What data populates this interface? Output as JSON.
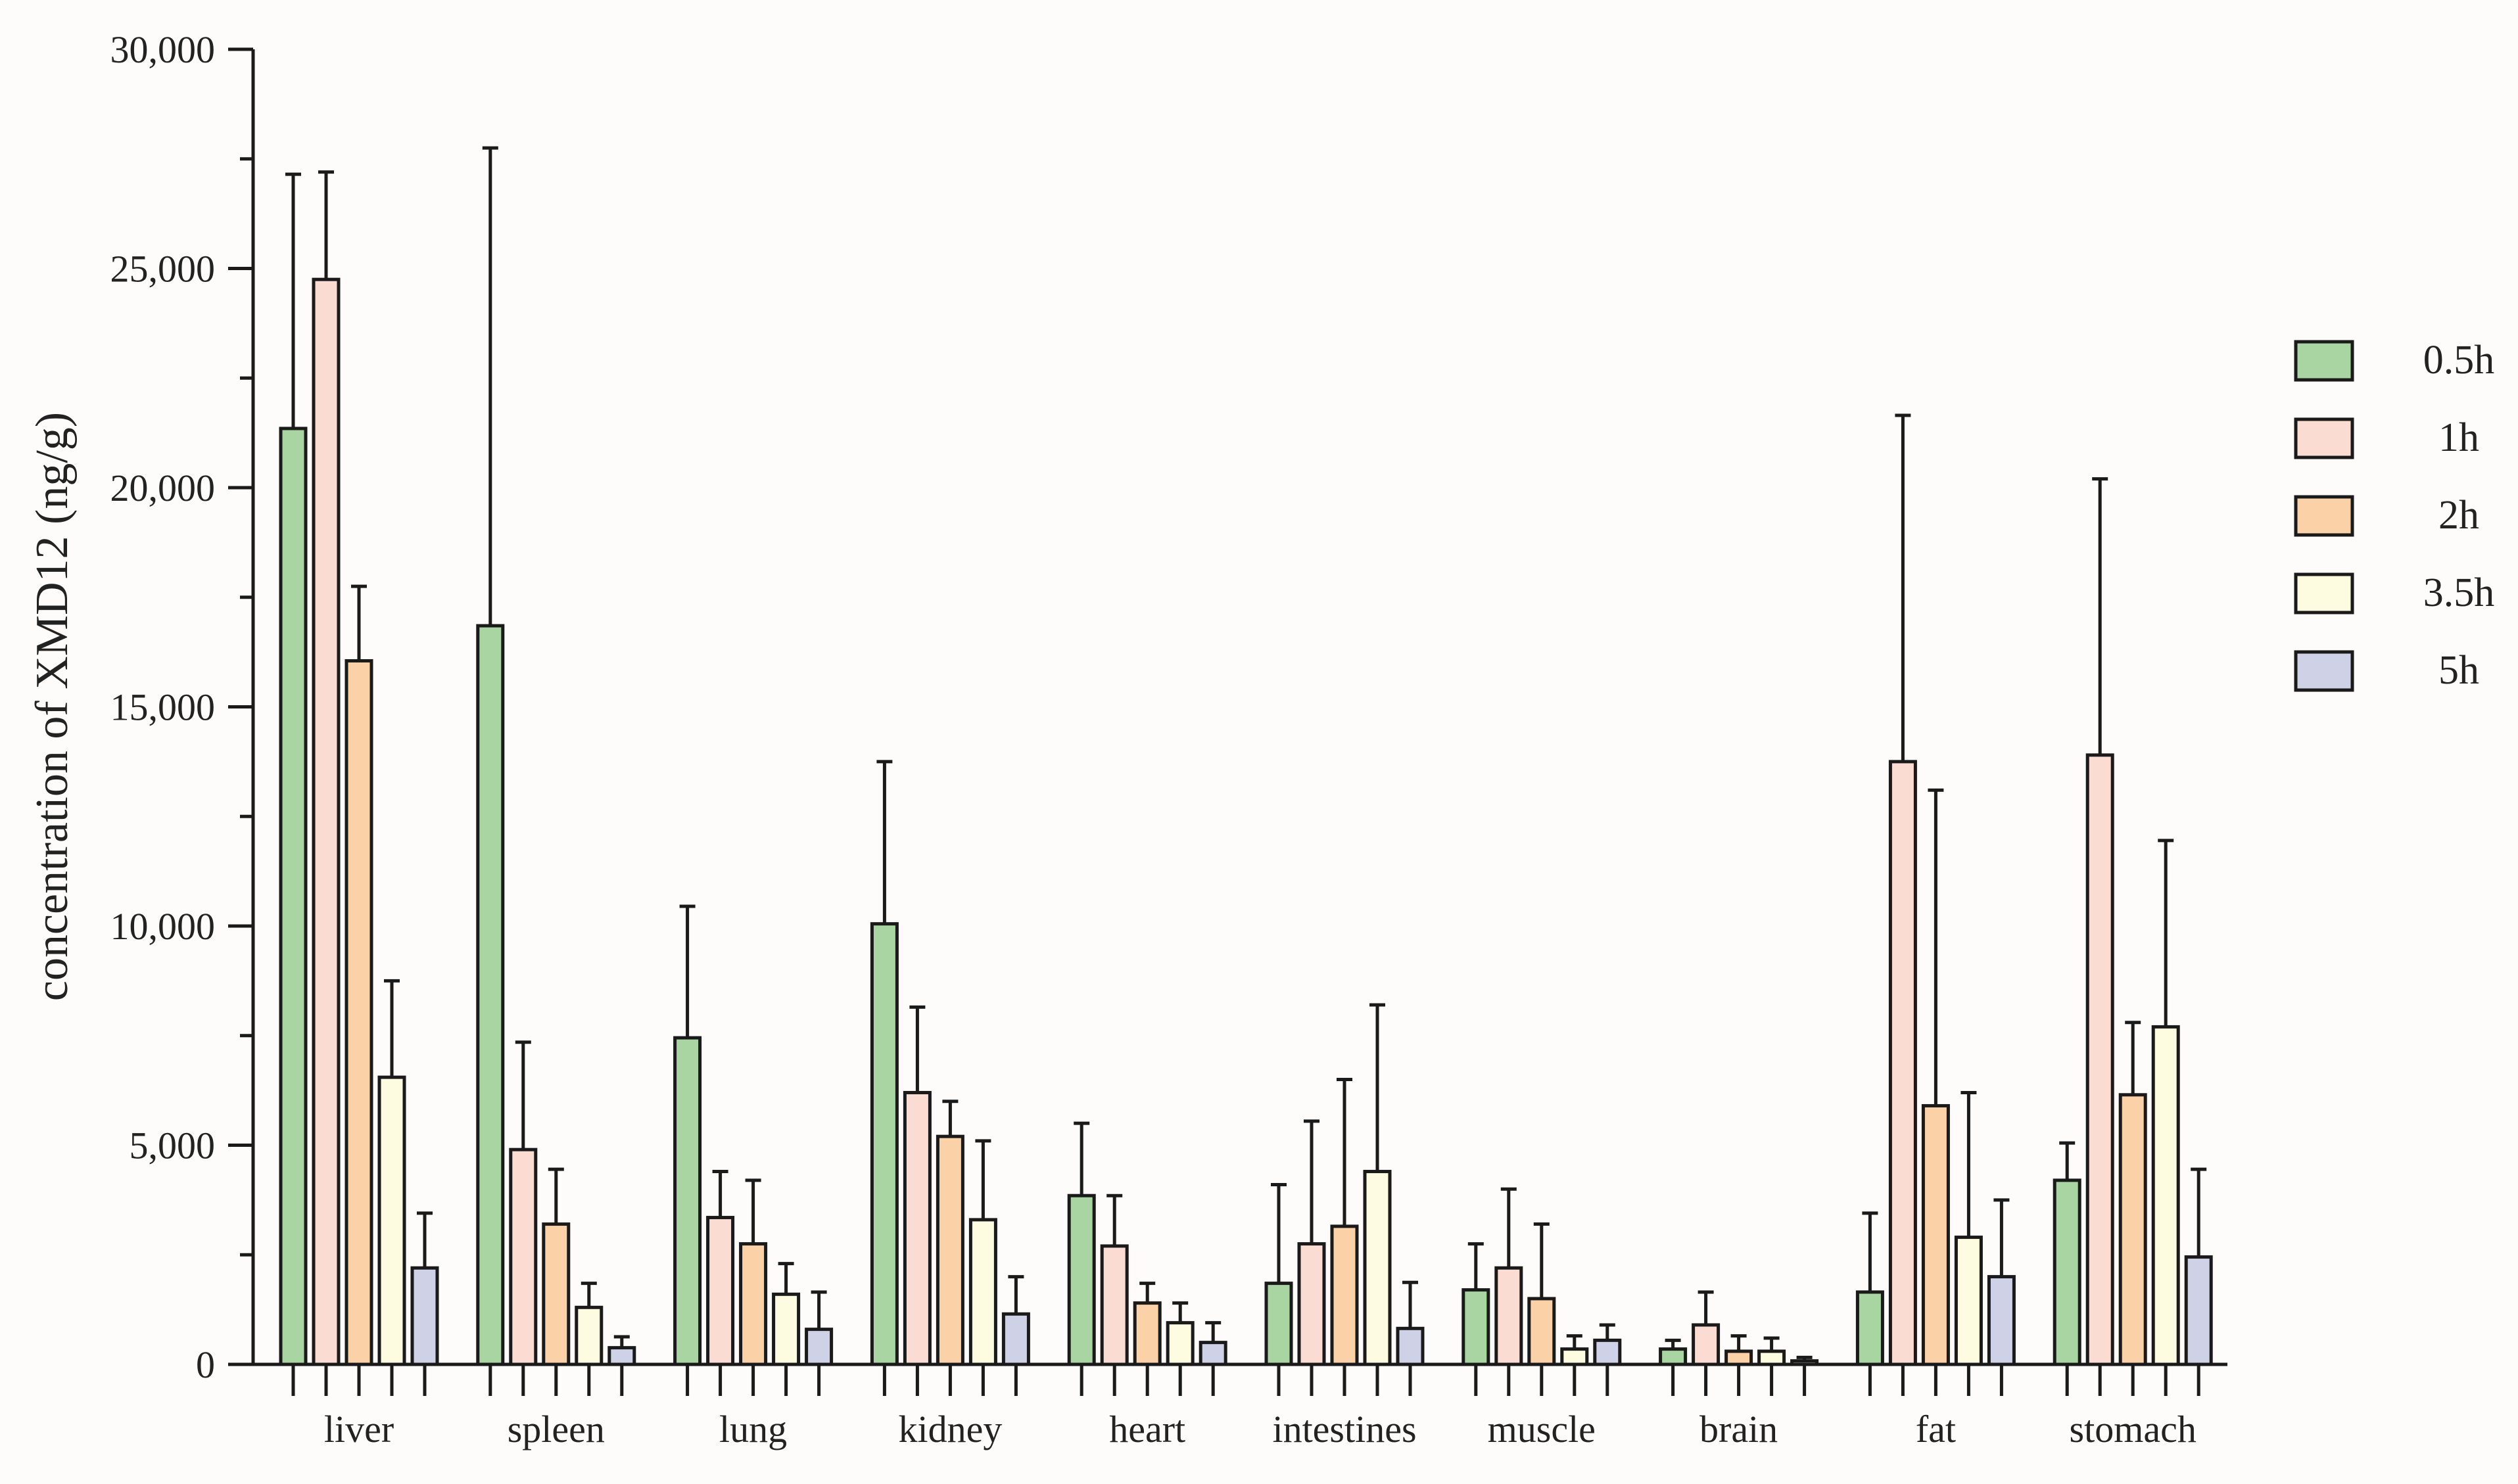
{
  "chart_data": {
    "type": "bar",
    "ylabel": "concentration of XMD12 (ng/g)",
    "xlabel": "",
    "ylim": [
      0,
      30000
    ],
    "yticks": [
      0,
      5000,
      10000,
      15000,
      20000,
      25000,
      30000
    ],
    "ytick_labels": [
      "0",
      "5,000",
      "10,000",
      "15,000",
      "20,000",
      "25,000",
      "30,000"
    ],
    "categories": [
      "liver",
      "spleen",
      "lung",
      "kidney",
      "heart",
      "intestines",
      "muscle",
      "brain",
      "fat",
      "stomach"
    ],
    "legend_position": "right",
    "series": [
      {
        "name": "0.5h",
        "color": "#a8d5a2",
        "values": [
          21350,
          16850,
          7450,
          10050,
          3850,
          1850,
          1700,
          350,
          1650,
          4200
        ],
        "error": [
          5800,
          10900,
          3000,
          3700,
          1650,
          2250,
          1050,
          200,
          1800,
          850
        ]
      },
      {
        "name": "1h",
        "color": "#fbdcd2",
        "values": [
          24750,
          4900,
          3350,
          6200,
          2700,
          2750,
          2200,
          900,
          13750,
          13900
        ],
        "error": [
          2450,
          2450,
          1050,
          1950,
          1150,
          2800,
          1800,
          750,
          7900,
          6300
        ]
      },
      {
        "name": "2h",
        "color": "#fbd2a8",
        "values": [
          16050,
          3200,
          2750,
          5200,
          1400,
          3150,
          1500,
          300,
          5900,
          6150
        ],
        "error": [
          1700,
          1250,
          1450,
          800,
          450,
          3350,
          1700,
          350,
          7200,
          1650
        ]
      },
      {
        "name": "3.5h",
        "color": "#fdfbe0",
        "values": [
          6550,
          1300,
          1600,
          3300,
          950,
          4400,
          350,
          300,
          2900,
          7700
        ],
        "error": [
          2200,
          550,
          700,
          1800,
          450,
          3800,
          300,
          300,
          3300,
          4250
        ]
      },
      {
        "name": "5h",
        "color": "#cfd2e6",
        "values": [
          2200,
          380,
          800,
          1150,
          500,
          820,
          550,
          80,
          2000,
          2450
        ],
        "error": [
          1250,
          250,
          850,
          850,
          450,
          1050,
          350,
          80,
          1750,
          2000
        ]
      }
    ]
  }
}
